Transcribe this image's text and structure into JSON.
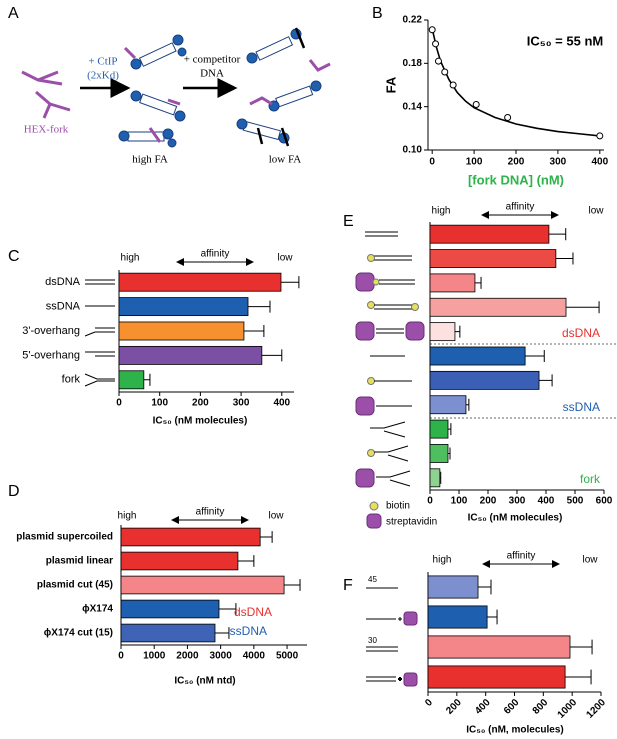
{
  "panel_labels": [
    "A",
    "B",
    "C",
    "D",
    "E",
    "F"
  ],
  "diagram": {
    "probe": "HEX-fork",
    "step1": "+ CtIP",
    "step1_note": "(2xKd)",
    "step2": "+ competitor",
    "step2_note": "DNA",
    "state1": "high FA",
    "state2": "low FA"
  },
  "chart_data": [
    {
      "type": "scatter",
      "annotation": "IC₅₀ = 55 nM",
      "xlabel": "[fork DNA] (nM)",
      "ylabel": "FA",
      "x": [
        0,
        8,
        15,
        30,
        50,
        105,
        180,
        400
      ],
      "values": [
        0.211,
        0.198,
        0.182,
        0.172,
        0.16,
        0.142,
        0.13,
        0.113
      ],
      "fit": {
        "x": [
          0,
          10,
          20,
          40,
          60,
          80,
          100,
          150,
          200,
          250,
          300,
          350,
          400
        ],
        "values": [
          0.212,
          0.195,
          0.182,
          0.165,
          0.153,
          0.145,
          0.139,
          0.13,
          0.124,
          0.12,
          0.117,
          0.115,
          0.113
        ]
      },
      "xlim": [
        -10,
        410
      ],
      "xticks": [
        0,
        100,
        200,
        300,
        400
      ],
      "ylim": [
        0.1,
        0.22
      ],
      "yticks": [
        {
          "value": 0.1,
          "label": "0.10"
        },
        0.14,
        0.18,
        0.22
      ],
      "xlabel_color": "#2db34a"
    },
    {
      "type": "bar",
      "horizontal": true,
      "xlabel": "IC₅₀ (nM molecules)",
      "annotations": [
        "high",
        "affinity",
        "low"
      ],
      "categories": [
        "dsDNA",
        "ssDNA",
        "3'-overhang",
        "5'-overhang",
        "fork"
      ],
      "values": [
        398,
        317,
        307,
        351,
        61
      ],
      "errors": [
        44,
        54,
        49,
        49,
        15
      ],
      "colors": [
        "#e8302f",
        "#1f5fb0",
        "#f7902e",
        "#7b4fa3",
        "#2db34a"
      ],
      "xlim": [
        0,
        430
      ],
      "xticks": [
        0,
        100,
        200,
        300,
        400
      ]
    },
    {
      "type": "bar",
      "horizontal": true,
      "xlabel": "IC₅₀ (nM ntd)",
      "annotations": [
        "high",
        "affinity",
        "low"
      ],
      "group_labels": [
        {
          "text": "dsDNA",
          "color": "#e8302f"
        },
        {
          "text": "ssDNA",
          "color": "#1f5fb0"
        }
      ],
      "categories": [
        "plasmid supercoiled",
        "plasmid linear",
        "plasmid cut (45)",
        "ϕX174",
        "ϕX174 cut (15)"
      ],
      "values": [
        4190,
        3520,
        4910,
        2950,
        2830
      ],
      "errors": [
        360,
        480,
        480,
        510,
        420
      ],
      "colors": [
        "#e8302f",
        "#e8302f",
        "#f4868a",
        "#1f5fb0",
        "#3f63b5"
      ],
      "xlim": [
        0,
        5600
      ],
      "xticks": [
        0,
        1000,
        2000,
        3000,
        4000,
        5000
      ]
    },
    {
      "type": "bar",
      "horizontal": true,
      "xlabel": "IC₅₀ (nM molecules)",
      "annotations": [
        "high",
        "affinity",
        "low"
      ],
      "group_labels": [
        {
          "text": "dsDNA",
          "color": "#e8302f"
        },
        {
          "text": "ssDNA",
          "color": "#1f5fb0"
        },
        {
          "text": "fork",
          "color": "#2db34a"
        }
      ],
      "legend": [
        "biotin",
        "streptavidin"
      ],
      "categories": [
        null,
        null,
        null,
        null,
        null,
        null,
        null,
        null,
        null,
        null,
        null
      ],
      "values": [
        410,
        434,
        155,
        469,
        86,
        328,
        376,
        124,
        62,
        62,
        34
      ],
      "errors": [
        58,
        59,
        21,
        114,
        17,
        66,
        45,
        10,
        10,
        7,
        3
      ],
      "colors": [
        "#e8302f",
        "#ec4a45",
        "#f4868a",
        "#f6a0a0",
        "#fde0e0",
        "#1f5fb0",
        "#3a5fb5",
        "#7c8fd0",
        "#2db34a",
        "#4fbe5e",
        "#8ed28f"
      ],
      "xlim": [
        0,
        600
      ],
      "xticks": [
        0,
        100,
        200,
        300,
        400,
        500,
        600
      ]
    },
    {
      "type": "bar",
      "horizontal": true,
      "xlabel": "IC₅₀ (nM, molecules)",
      "annotations": [
        "high",
        "affinity",
        "low"
      ],
      "length_labels": [
        "45",
        "30"
      ],
      "categories": [
        null,
        null,
        null,
        null
      ],
      "values": [
        347,
        410,
        985,
        951
      ],
      "errors": [
        90,
        69,
        153,
        180
      ],
      "colors": [
        "#7e8fd0",
        "#1f5fb0",
        "#f4868a",
        "#e8302f"
      ],
      "xlim": [
        0,
        1200
      ],
      "xticks": [
        0,
        200,
        400,
        600,
        800,
        1000,
        1200
      ],
      "rotate_xticks": true
    }
  ]
}
